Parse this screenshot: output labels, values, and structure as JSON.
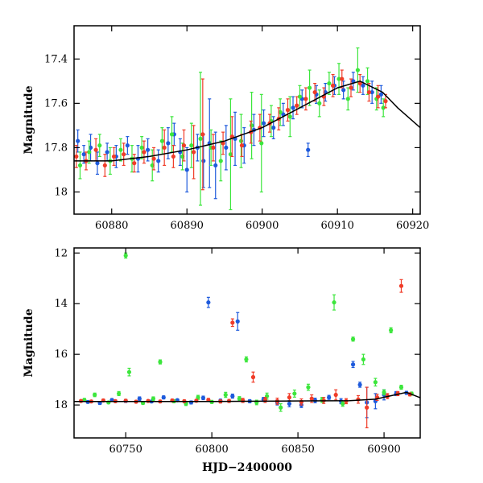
{
  "colors": {
    "blue": "#1e5adc",
    "green": "#3ce63c",
    "red": "#f03c28",
    "model": "#000000"
  },
  "chart_data": [
    {
      "type": "scatter",
      "xlabel": "",
      "ylabel": "Magnitude",
      "xlim": [
        60875,
        60921
      ],
      "ylim": [
        18.1,
        17.25
      ],
      "y_inverted": true,
      "grid": false,
      "xticks": [
        60880,
        60890,
        60900,
        60910,
        60920
      ],
      "xtick_labels": [
        "60880",
        "60890",
        "60900",
        "60910",
        "60920"
      ],
      "yticks": [
        17.4,
        17.6,
        17.8,
        18.0
      ],
      "ytick_labels": [
        "17.4",
        "17.6",
        "17.8",
        "18"
      ],
      "model_curve": {
        "x": [
          60875,
          60880,
          60885,
          60890,
          60895,
          60900,
          60905,
          60910,
          60913,
          60916,
          60918,
          60921
        ],
        "y": [
          17.86,
          17.86,
          17.84,
          17.81,
          17.77,
          17.71,
          17.62,
          17.53,
          17.5,
          17.55,
          17.62,
          17.71
        ]
      },
      "series": [
        {
          "color_key": "blue",
          "x": [
            60875.5,
            60876.3,
            60877.2,
            60878.1,
            60879.4,
            60880.6,
            60882.1,
            60883.5,
            60884.8,
            60886.2,
            60887.5,
            60888.3,
            60889.1,
            60890.0,
            60891.4,
            60892.2,
            60893.0,
            60893.8,
            60895.2,
            60896.4,
            60897.6,
            60898.9,
            60900.2,
            60901.5,
            60902.8,
            60904.1,
            60905.3,
            60906.1,
            60907.2,
            60908.4,
            60909.6,
            60910.8,
            60912.1,
            60913.4,
            60914.6,
            60915.8
          ],
          "y": [
            17.77,
            17.83,
            17.8,
            17.87,
            17.82,
            17.84,
            17.79,
            17.85,
            17.81,
            17.86,
            17.78,
            17.74,
            17.82,
            17.9,
            17.8,
            17.86,
            17.78,
            17.88,
            17.8,
            17.76,
            17.79,
            17.72,
            17.69,
            17.71,
            17.65,
            17.62,
            17.58,
            17.81,
            17.56,
            17.55,
            17.52,
            17.54,
            17.5,
            17.52,
            17.55,
            17.56
          ],
          "err": [
            0.05,
            0.04,
            0.06,
            0.05,
            0.04,
            0.05,
            0.04,
            0.06,
            0.05,
            0.05,
            0.07,
            0.05,
            0.06,
            0.1,
            0.06,
            0.12,
            0.2,
            0.15,
            0.1,
            0.12,
            0.08,
            0.07,
            0.06,
            0.05,
            0.05,
            0.05,
            0.04,
            0.03,
            0.04,
            0.04,
            0.04,
            0.04,
            0.04,
            0.04,
            0.05,
            0.04
          ]
        },
        {
          "color_key": "green",
          "x": [
            60875.8,
            60877.0,
            60878.4,
            60879.8,
            60881.2,
            60882.7,
            60884.0,
            60885.4,
            60886.7,
            60888.0,
            60889.4,
            60890.6,
            60891.8,
            60893.2,
            60894.5,
            60895.8,
            60897.2,
            60898.6,
            60899.9,
            60901.2,
            60902.4,
            60903.7,
            60905.0,
            60906.3,
            60907.6,
            60908.9,
            60910.2,
            60911.4,
            60912.7,
            60914.0,
            60915.2,
            60916.1
          ],
          "y": [
            17.88,
            17.82,
            17.79,
            17.86,
            17.81,
            17.85,
            17.8,
            17.88,
            17.77,
            17.74,
            17.84,
            17.79,
            17.76,
            17.8,
            17.86,
            17.83,
            17.77,
            17.7,
            17.78,
            17.68,
            17.64,
            17.66,
            17.57,
            17.53,
            17.6,
            17.51,
            17.49,
            17.58,
            17.45,
            17.5,
            17.58,
            17.62
          ],
          "err": [
            0.06,
            0.05,
            0.05,
            0.06,
            0.05,
            0.06,
            0.05,
            0.07,
            0.06,
            0.08,
            0.06,
            0.1,
            0.3,
            0.08,
            0.09,
            0.25,
            0.12,
            0.15,
            0.22,
            0.07,
            0.06,
            0.09,
            0.05,
            0.08,
            0.06,
            0.05,
            0.07,
            0.05,
            0.1,
            0.06,
            0.05,
            0.04
          ]
        },
        {
          "color_key": "red",
          "x": [
            60875.3,
            60876.6,
            60877.9,
            60879.1,
            60880.3,
            60881.6,
            60883.0,
            60884.3,
            60885.6,
            60887.0,
            60888.2,
            60889.6,
            60890.9,
            60892.1,
            60893.5,
            60894.8,
            60896.0,
            60897.3,
            60898.5,
            60899.7,
            60901.0,
            60902.2,
            60903.4,
            60904.6,
            60905.8,
            60907.0,
            60908.2,
            60909.4,
            60910.6,
            60911.8,
            60913.0,
            60914.2,
            60915.4,
            60916.4
          ],
          "y": [
            17.84,
            17.86,
            17.81,
            17.88,
            17.84,
            17.83,
            17.87,
            17.82,
            17.85,
            17.8,
            17.84,
            17.79,
            17.82,
            17.74,
            17.8,
            17.78,
            17.75,
            17.79,
            17.73,
            17.71,
            17.69,
            17.67,
            17.63,
            17.61,
            17.58,
            17.55,
            17.57,
            17.52,
            17.49,
            17.53,
            17.51,
            17.55,
            17.57,
            17.59
          ],
          "err": [
            0.05,
            0.04,
            0.05,
            0.05,
            0.04,
            0.05,
            0.04,
            0.05,
            0.05,
            0.08,
            0.05,
            0.07,
            0.12,
            0.25,
            0.06,
            0.05,
            0.09,
            0.05,
            0.05,
            0.06,
            0.04,
            0.05,
            0.05,
            0.04,
            0.05,
            0.04,
            0.04,
            0.05,
            0.04,
            0.04,
            0.04,
            0.04,
            0.05,
            0.03
          ]
        }
      ]
    },
    {
      "type": "scatter",
      "xlabel": "HJD−2400000",
      "ylabel": "Magnitude",
      "xlim": [
        60720,
        60921
      ],
      "ylim": [
        19.3,
        11.8
      ],
      "y_inverted": true,
      "grid": false,
      "xticks": [
        60750,
        60800,
        60850,
        60900
      ],
      "xtick_labels": [
        "60750",
        "60800",
        "60850",
        "60900"
      ],
      "yticks": [
        12,
        14,
        16,
        18
      ],
      "ytick_labels": [
        "12",
        "14",
        "16",
        "18"
      ],
      "model_curve": {
        "x": [
          60720,
          60800,
          60880,
          60895,
          60905,
          60913,
          60921
        ],
        "y": [
          17.86,
          17.86,
          17.83,
          17.77,
          17.62,
          17.5,
          17.71
        ]
      },
      "series": [
        {
          "color_key": "blue",
          "x": [
            60728,
            60735,
            60742,
            60750,
            60758,
            60765,
            60772,
            60780,
            60788,
            60795,
            60798,
            60805,
            60812,
            60815,
            60822,
            60830,
            60838,
            60845,
            60852,
            60860,
            60868,
            60875,
            60882,
            60886,
            60890,
            60895,
            60900,
            60907,
            60913
          ],
          "y": [
            17.88,
            17.92,
            17.8,
            17.84,
            17.75,
            17.86,
            17.7,
            17.81,
            17.9,
            17.72,
            13.95,
            17.83,
            17.65,
            14.7,
            17.85,
            17.78,
            17.9,
            17.95,
            18.0,
            17.82,
            17.7,
            17.85,
            16.4,
            17.2,
            17.9,
            17.85,
            17.6,
            17.55,
            17.52
          ],
          "err": [
            0.05,
            0.06,
            0.05,
            0.06,
            0.07,
            0.05,
            0.06,
            0.05,
            0.06,
            0.07,
            0.2,
            0.06,
            0.08,
            0.35,
            0.06,
            0.08,
            0.1,
            0.12,
            0.1,
            0.09,
            0.08,
            0.1,
            0.12,
            0.1,
            0.6,
            0.3,
            0.2,
            0.08,
            0.06
          ]
        },
        {
          "color_key": "green",
          "x": [
            60726,
            60732,
            60740,
            60746,
            60750,
            60752,
            60760,
            60766,
            60770,
            60778,
            60785,
            60792,
            60800,
            60808,
            60816,
            60820,
            60826,
            60832,
            60840,
            60848,
            60856,
            60864,
            60871,
            60876,
            60882,
            60888,
            60895,
            60900,
            60904,
            60910,
            60916
          ],
          "y": [
            17.8,
            17.6,
            17.9,
            17.55,
            12.1,
            16.7,
            17.92,
            17.75,
            16.3,
            17.85,
            17.95,
            17.7,
            17.88,
            17.6,
            17.75,
            16.2,
            17.9,
            17.65,
            18.1,
            17.55,
            17.3,
            17.8,
            13.95,
            17.95,
            15.4,
            16.2,
            17.1,
            17.5,
            15.05,
            17.3,
            17.55
          ],
          "err": [
            0.06,
            0.07,
            0.05,
            0.08,
            0.1,
            0.15,
            0.06,
            0.07,
            0.08,
            0.06,
            0.07,
            0.08,
            0.06,
            0.1,
            0.08,
            0.1,
            0.09,
            0.12,
            0.15,
            0.14,
            0.12,
            0.1,
            0.3,
            0.1,
            0.08,
            0.2,
            0.15,
            0.1,
            0.1,
            0.08,
            0.06
          ]
        },
        {
          "color_key": "red",
          "x": [
            60724,
            60730,
            60737,
            60744,
            60750,
            60756,
            60763,
            60770,
            60777,
            60784,
            60791,
            60798,
            60805,
            60810,
            60812,
            60818,
            60824,
            60831,
            60838,
            60845,
            60852,
            60858,
            60865,
            60872,
            60878,
            60885,
            60890,
            60896,
            60902,
            60908,
            60910,
            60915
          ],
          "y": [
            17.84,
            17.86,
            17.82,
            17.85,
            17.83,
            17.87,
            17.84,
            17.86,
            17.82,
            17.85,
            17.83,
            17.8,
            17.86,
            17.84,
            14.75,
            17.82,
            16.9,
            17.8,
            17.85,
            17.7,
            17.88,
            17.75,
            17.82,
            17.6,
            17.85,
            17.78,
            18.1,
            17.7,
            17.65,
            17.55,
            13.3,
            17.58
          ],
          "err": [
            0.05,
            0.05,
            0.05,
            0.05,
            0.05,
            0.05,
            0.05,
            0.05,
            0.05,
            0.05,
            0.05,
            0.06,
            0.06,
            0.06,
            0.15,
            0.08,
            0.2,
            0.1,
            0.12,
            0.15,
            0.12,
            0.15,
            0.12,
            0.2,
            0.1,
            0.15,
            0.8,
            0.12,
            0.1,
            0.08,
            0.25,
            0.06
          ]
        }
      ]
    }
  ]
}
